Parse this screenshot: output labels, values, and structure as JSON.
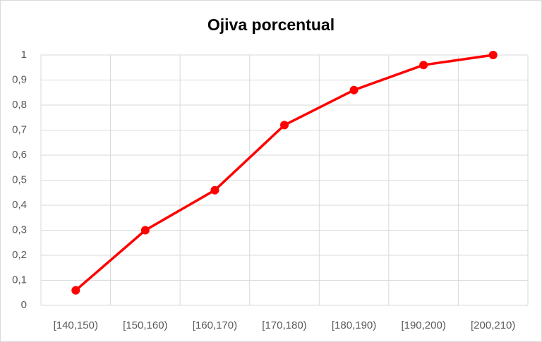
{
  "chart_data": {
    "type": "line",
    "title": "Ojiva porcentual",
    "categories": [
      "[140,150)",
      "[150,160)",
      "[160,170)",
      "[170,180)",
      "[180,190)",
      "[190,200)",
      "[200,210)"
    ],
    "values": [
      0.06,
      0.3,
      0.46,
      0.72,
      0.86,
      0.96,
      1
    ],
    "color": "#ff0000",
    "ylim": [
      0,
      1
    ],
    "yticks": [
      0,
      {
        "value": 0.1,
        "label": "0,1"
      },
      {
        "value": 0.2,
        "label": "0,2"
      },
      {
        "value": 0.3,
        "label": "0,3"
      },
      {
        "value": 0.4,
        "label": "0,4"
      },
      {
        "value": 0.5,
        "label": "0,5"
      },
      {
        "value": 0.6,
        "label": "0,6"
      },
      {
        "value": 0.7,
        "label": "0,7"
      },
      {
        "value": 0.8,
        "label": "0,8"
      },
      {
        "value": 0.9,
        "label": "0,9"
      },
      1
    ],
    "grid": true
  }
}
